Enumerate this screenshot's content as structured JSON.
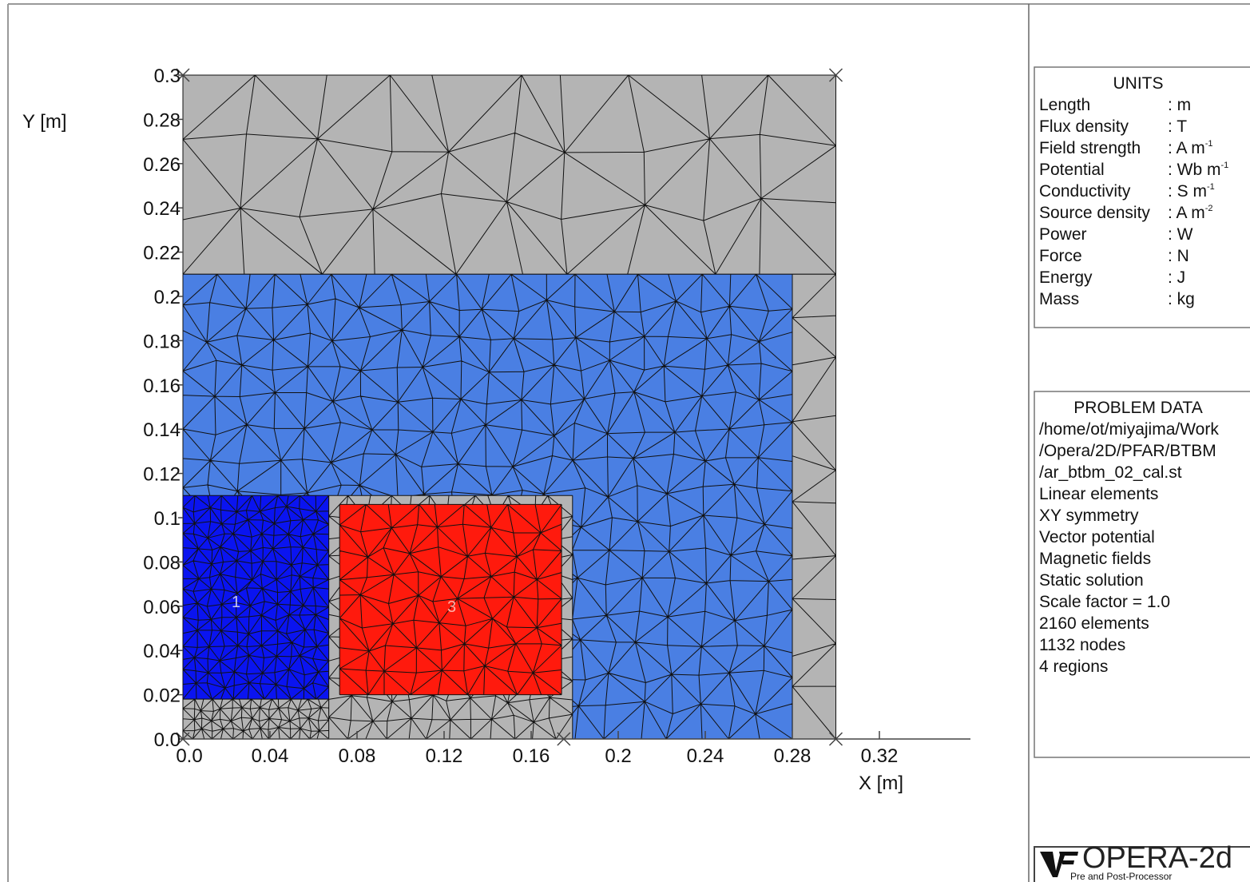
{
  "plot": {
    "y_label": "Y [m]",
    "x_label": "X [m]",
    "xticks": [
      {
        "value": 0,
        "label": "0.0"
      },
      0.04,
      0.08,
      0.12,
      0.16,
      0.2,
      0.24,
      0.28,
      0.32
    ],
    "yticks": [
      {
        "value": 0,
        "label": "0.0"
      },
      0.02,
      0.04,
      0.06,
      0.08,
      0.1,
      0.12,
      0.14,
      0.16,
      0.18,
      0.2,
      0.22,
      0.24,
      0.26,
      0.28,
      0.3
    ],
    "region_labels": [
      "1",
      "3"
    ]
  },
  "units": {
    "title": "UNITS",
    "rows": [
      {
        "name": "Length",
        "unit": ": m"
      },
      {
        "name": "Flux density",
        "unit": ": T"
      },
      {
        "name": "Field strength",
        "unit": ": A m",
        "exp": "-1"
      },
      {
        "name": "Potential",
        "unit": ": Wb m",
        "exp": "-1"
      },
      {
        "name": "Conductivity",
        "unit": ": S m",
        "exp": "-1"
      },
      {
        "name": "Source density",
        "unit": ": A m",
        "exp": "-2"
      },
      {
        "name": "Power",
        "unit": ": W"
      },
      {
        "name": "Force",
        "unit": ": N"
      },
      {
        "name": "Energy",
        "unit": ": J"
      },
      {
        "name": "Mass",
        "unit": ": kg"
      }
    ]
  },
  "problem_data": {
    "title": "PROBLEM DATA",
    "lines": [
      "/home/ot/miyajima/Work",
      "/Opera/2D/PFAR/BTBM",
      "/ar_btbm_02_cal.st",
      "Linear elements",
      "XY symmetry",
      "Vector potential",
      "Magnetic fields",
      "Static solution",
      "Scale factor = 1.0",
      "2160 elements",
      "1132 nodes",
      "4 regions"
    ]
  },
  "logo": {
    "name": "OPERA-2d",
    "subtitle": "Pre and Post-Processor"
  }
}
